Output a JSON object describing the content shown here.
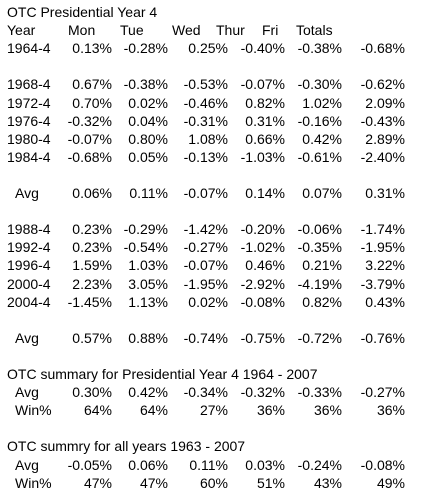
{
  "header": {
    "title": "OTC Presidential Year 4",
    "columns": [
      "Year",
      "Mon",
      "Tue",
      "Wed",
      "Thur",
      "Fri",
      "Totals"
    ]
  },
  "sections": [
    {
      "rows": [
        [
          "1964-4",
          "0.13%",
          "-0.28%",
          "0.25%",
          "-0.40%",
          "-0.38%",
          "-0.68%"
        ]
      ]
    },
    {
      "rows": [
        [
          "1968-4",
          "0.67%",
          "-0.38%",
          "-0.53%",
          "-0.07%",
          "-0.30%",
          "-0.62%"
        ],
        [
          "1972-4",
          "0.70%",
          "0.02%",
          "-0.46%",
          "0.82%",
          "1.02%",
          "2.09%"
        ],
        [
          "1976-4",
          "-0.32%",
          "0.04%",
          "-0.31%",
          "0.31%",
          "-0.16%",
          "-0.43%"
        ],
        [
          "1980-4",
          "-0.07%",
          "0.80%",
          "1.08%",
          "0.66%",
          "0.42%",
          "2.89%"
        ],
        [
          "1984-4",
          "-0.68%",
          "0.05%",
          "-0.13%",
          "-1.03%",
          "-0.61%",
          "-2.40%"
        ]
      ]
    },
    {
      "rows": [
        [
          "Avg",
          "0.06%",
          "0.11%",
          "-0.07%",
          "0.14%",
          "0.07%",
          "0.31%"
        ]
      ]
    },
    {
      "rows": [
        [
          "1988-4",
          "0.23%",
          "-0.29%",
          "-1.42%",
          "-0.20%",
          "-0.06%",
          "-1.74%"
        ],
        [
          "1992-4",
          "0.23%",
          "-0.54%",
          "-0.27%",
          "-1.02%",
          "-0.35%",
          "-1.95%"
        ],
        [
          "1996-4",
          "1.59%",
          "1.03%",
          "-0.07%",
          "0.46%",
          "0.21%",
          "3.22%"
        ],
        [
          "2000-4",
          "2.23%",
          "3.05%",
          "-1.95%",
          "-2.92%",
          "-4.19%",
          "-3.79%"
        ],
        [
          "2004-4",
          "-1.45%",
          "1.13%",
          "0.02%",
          "-0.08%",
          "0.82%",
          "0.43%"
        ]
      ]
    },
    {
      "rows": [
        [
          "Avg",
          "0.57%",
          "0.88%",
          "-0.74%",
          "-0.75%",
          "-0.72%",
          "-0.76%"
        ]
      ]
    },
    {
      "title": "OTC summary for Presidential Year 4 1964 - 2007",
      "rows": [
        [
          "Avg",
          "0.30%",
          "0.42%",
          "-0.34%",
          "-0.32%",
          "-0.33%",
          "-0.27%"
        ],
        [
          "Win%",
          "64%",
          "64%",
          "27%",
          "36%",
          "36%",
          "36%"
        ]
      ]
    },
    {
      "title": "OTC summry for all years 1963 - 2007",
      "rows": [
        [
          "Avg",
          "-0.05%",
          "0.06%",
          "0.11%",
          "0.03%",
          "-0.24%",
          "-0.08%"
        ],
        [
          "Win%",
          "47%",
          "47%",
          "60%",
          "51%",
          "43%",
          "49%"
        ]
      ]
    }
  ]
}
